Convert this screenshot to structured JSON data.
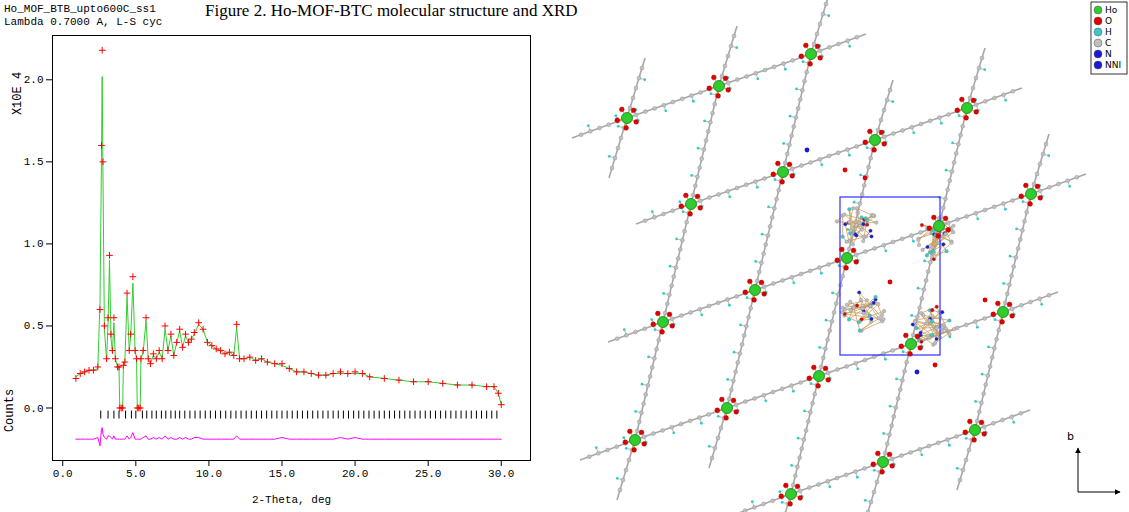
{
  "title": "Figure 2. Ho-MOF-BTC molecular structure and XRD",
  "chart_data": {
    "type": "line",
    "header": [
      "Ho_MOF_BTB_upto600C_ss1",
      "Lambda 0.7000 A, L-S cyc"
    ],
    "xlabel": "2-Theta, deg",
    "ylabel": "X10E 4",
    "ylabel_lower": "Counts",
    "x": [
      0.9,
      1.2,
      1.5,
      1.8,
      2.1,
      2.4,
      2.55,
      2.65,
      2.7,
      2.75,
      2.85,
      3.0,
      3.1,
      3.2,
      3.3,
      3.4,
      3.5,
      3.6,
      3.75,
      3.85,
      3.9,
      4.0,
      4.1,
      4.15,
      4.25,
      4.4,
      4.55,
      4.65,
      4.8,
      4.95,
      5.05,
      5.1,
      5.2,
      5.3,
      5.35,
      5.5,
      5.7,
      5.85,
      6.0,
      6.2,
      6.4,
      6.6,
      6.8,
      7.0,
      7.2,
      7.4,
      7.6,
      7.8,
      8.0,
      8.2,
      8.4,
      8.6,
      8.8,
      9.0,
      9.3,
      9.6,
      9.9,
      10.2,
      10.5,
      10.8,
      11.1,
      11.4,
      11.7,
      11.9,
      12.1,
      12.4,
      12.8,
      13.2,
      13.6,
      14.0,
      14.5,
      15.0,
      15.5,
      16.0,
      16.5,
      17.0,
      17.5,
      18.0,
      18.5,
      19.0,
      19.5,
      20.0,
      20.5,
      21.0,
      22.0,
      23.0,
      24.0,
      25.0,
      26.0,
      27.0,
      28.0,
      29.0,
      29.5,
      29.8,
      30.0
    ],
    "series": [
      {
        "type": "scatter",
        "marker": "plus",
        "color": "#ff0000",
        "values": [
          0.18,
          0.21,
          0.22,
          0.23,
          0.23,
          0.25,
          0.6,
          1.6,
          2.18,
          1.5,
          0.5,
          0.3,
          0.55,
          0.93,
          0.45,
          0.35,
          0.55,
          0.3,
          0.25,
          0.25,
          0,
          0,
          0,
          0.26,
          0.28,
          0.7,
          0.35,
          0.45,
          0.8,
          0.35,
          0.3,
          0,
          0,
          0,
          0.3,
          0.35,
          0.55,
          0.3,
          0.27,
          0.33,
          0.3,
          0.35,
          0.3,
          0.5,
          0.35,
          0.45,
          0.32,
          0.4,
          0.48,
          0.37,
          0.45,
          0.4,
          0.42,
          0.46,
          0.52,
          0.48,
          0.4,
          0.38,
          0.36,
          0.35,
          0.33,
          0.34,
          0.32,
          0.51,
          0.3,
          0.3,
          0.31,
          0.29,
          0.3,
          0.28,
          0.27,
          0.27,
          0.24,
          0.22,
          0.22,
          0.21,
          0.2,
          0.2,
          0.21,
          0.22,
          0.21,
          0.22,
          0.21,
          0.19,
          0.18,
          0.17,
          0.16,
          0.16,
          0.15,
          0.14,
          0.14,
          0.13,
          0.13,
          0.09,
          0.02
        ]
      },
      {
        "type": "line",
        "color": "#33cc33",
        "values": [
          0.19,
          0.21,
          0.22,
          0.23,
          0.23,
          0.24,
          0.65,
          1.52,
          2.02,
          1.45,
          0.48,
          0.29,
          0.52,
          0.9,
          0.43,
          0.34,
          0.52,
          0.3,
          0.25,
          0.25,
          0,
          0,
          0,
          0.26,
          0.28,
          0.68,
          0.35,
          0.44,
          0.76,
          0.35,
          0.3,
          0,
          0,
          0,
          0.3,
          0.34,
          0.53,
          0.3,
          0.27,
          0.32,
          0.3,
          0.34,
          0.3,
          0.48,
          0.35,
          0.44,
          0.32,
          0.4,
          0.47,
          0.37,
          0.44,
          0.4,
          0.42,
          0.45,
          0.51,
          0.48,
          0.4,
          0.38,
          0.36,
          0.35,
          0.33,
          0.34,
          0.32,
          0.49,
          0.3,
          0.3,
          0.31,
          0.29,
          0.3,
          0.28,
          0.27,
          0.26,
          0.24,
          0.22,
          0.22,
          0.21,
          0.2,
          0.2,
          0.21,
          0.21,
          0.21,
          0.21,
          0.21,
          0.19,
          0.18,
          0.17,
          0.16,
          0.16,
          0.15,
          0.14,
          0.14,
          0.13,
          0.13,
          0.09,
          0.02
        ]
      },
      {
        "type": "line",
        "color": "#ff00ff",
        "values": [
          -0.19,
          -0.19,
          -0.19,
          -0.19,
          -0.19,
          -0.18,
          -0.23,
          -0.13,
          -0.12,
          -0.16,
          -0.18,
          -0.19,
          -0.17,
          -0.17,
          -0.18,
          -0.19,
          -0.17,
          -0.19,
          -0.19,
          -0.19,
          -0.19,
          -0.19,
          -0.19,
          -0.19,
          -0.19,
          -0.17,
          -0.19,
          -0.18,
          -0.15,
          -0.19,
          -0.19,
          -0.19,
          -0.19,
          -0.19,
          -0.19,
          -0.18,
          -0.17,
          -0.19,
          -0.19,
          -0.18,
          -0.19,
          -0.18,
          -0.19,
          -0.17,
          -0.19,
          -0.18,
          -0.19,
          -0.19,
          -0.18,
          -0.19,
          -0.18,
          -0.19,
          -0.19,
          -0.18,
          -0.18,
          -0.19,
          -0.19,
          -0.19,
          -0.19,
          -0.19,
          -0.19,
          -0.19,
          -0.19,
          -0.17,
          -0.19,
          -0.19,
          -0.19,
          -0.19,
          -0.19,
          -0.19,
          -0.19,
          -0.18,
          -0.19,
          -0.19,
          -0.19,
          -0.19,
          -0.19,
          -0.19,
          -0.19,
          -0.18,
          -0.19,
          -0.18,
          -0.19,
          -0.19,
          -0.19,
          -0.19,
          -0.19,
          -0.19,
          -0.19,
          -0.19,
          -0.19,
          -0.19,
          -0.19,
          -0.19,
          -0.19
        ]
      }
    ],
    "reflections": {
      "y": -0.04,
      "color": "#000000",
      "x": [
        2.6,
        3.1,
        3.5,
        3.85,
        4.3,
        4.7,
        5.0,
        5.45,
        5.75,
        6.1,
        6.4,
        6.75,
        7.05,
        7.4,
        7.7,
        8.0,
        8.35,
        8.7,
        9.05,
        9.4,
        9.75,
        10.1,
        10.45,
        10.8,
        11.15,
        11.5,
        11.85,
        12.2,
        12.55,
        12.9,
        13.25,
        13.6,
        13.95,
        14.3,
        14.65,
        15.0,
        15.35,
        15.7,
        16.05,
        16.4,
        16.75,
        17.1,
        17.45,
        17.8,
        18.15,
        18.5,
        18.85,
        19.2,
        19.55,
        19.9,
        20.25,
        20.6,
        20.95,
        21.3,
        21.65,
        22.0,
        22.35,
        22.7,
        23.05,
        23.4,
        23.75,
        24.1,
        24.45,
        24.8,
        25.15,
        25.5,
        25.85,
        26.2,
        26.55,
        26.9,
        27.25,
        27.6,
        27.95,
        28.3,
        28.65,
        29.0,
        29.35,
        29.7
      ]
    },
    "xlim": [
      -0.7,
      32.0
    ],
    "ylim": [
      -0.32,
      2.27
    ],
    "xticks": [
      {
        "value": 0,
        "label": "0.0"
      },
      {
        "value": 5,
        "label": "5.0"
      },
      {
        "value": 10,
        "label": "10.0"
      },
      {
        "value": 15,
        "label": "15.0"
      },
      {
        "value": 20,
        "label": "20.0"
      },
      {
        "value": 25,
        "label": "25.0"
      },
      {
        "value": 30,
        "label": "30.0"
      }
    ],
    "yticks": [
      {
        "value": 0,
        "label": "0.0"
      },
      {
        "value": 0.5,
        "label": "0.5"
      },
      {
        "value": 1,
        "label": "1.0"
      },
      {
        "value": 1.5,
        "label": "1.5"
      },
      {
        "value": 2,
        "label": "2.0"
      }
    ]
  },
  "structure": {
    "legend": [
      {
        "label": "Ho",
        "color": "#2ecc2e"
      },
      {
        "label": "O",
        "color": "#e00000"
      },
      {
        "label": "H",
        "color": "#33cccc"
      },
      {
        "label": "C",
        "color": "#c0c0c0"
      },
      {
        "label": "N",
        "color": "#1a1adc"
      },
      {
        "label": "NNI",
        "color": "#1a1adc"
      }
    ],
    "axis_label": "b"
  }
}
